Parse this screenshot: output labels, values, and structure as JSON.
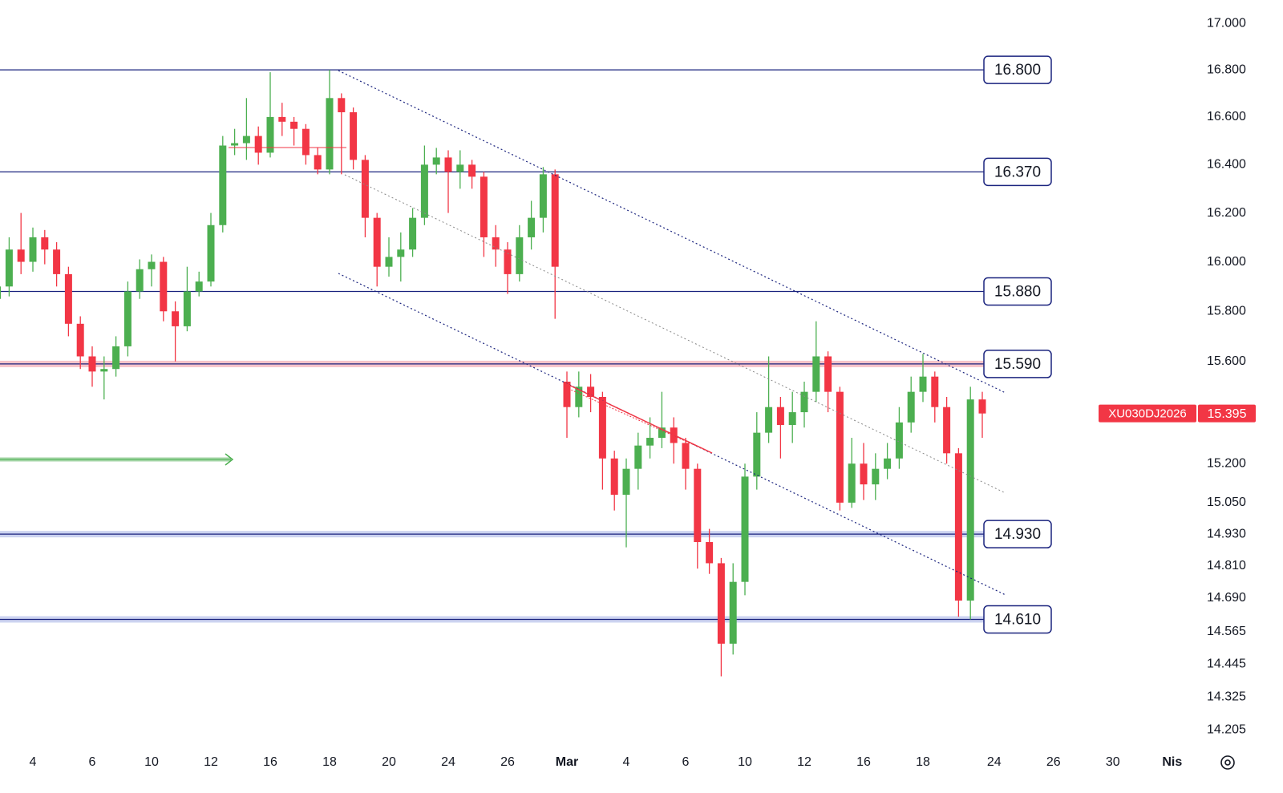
{
  "chart_data": {
    "type": "candlestick",
    "symbol": "XU030DJ2026",
    "last_price": {
      "value": 15395,
      "label": "15.395"
    },
    "up_color": "#4caf50",
    "down_color": "#f23645",
    "log_scale": true,
    "ylim": [
      14134,
      17101
    ],
    "yticks": [
      {
        "value": 17000,
        "label": "17.000"
      },
      {
        "value": 16800,
        "label": "16.800"
      },
      {
        "value": 16600,
        "label": "16.600"
      },
      {
        "value": 16400,
        "label": "16.400"
      },
      {
        "value": 16200,
        "label": "16.200"
      },
      {
        "value": 16000,
        "label": "16.000"
      },
      {
        "value": 15800,
        "label": "15.800"
      },
      {
        "value": 15600,
        "label": "15.600"
      },
      {
        "value": 15200,
        "label": "15.200"
      },
      {
        "value": 15050,
        "label": "15.050"
      },
      {
        "value": 14930,
        "label": "14.930"
      },
      {
        "value": 14810,
        "label": "14.810"
      },
      {
        "value": 14690,
        "label": "14.690"
      },
      {
        "value": 14565,
        "label": "14.565"
      },
      {
        "value": 14445,
        "label": "14.445"
      },
      {
        "value": 14325,
        "label": "14.325"
      },
      {
        "value": 14205,
        "label": "14.205"
      }
    ],
    "levels": [
      {
        "value": 16800,
        "label": "16.800",
        "band": "none"
      },
      {
        "value": 16370,
        "label": "16.370",
        "band": "none"
      },
      {
        "value": 15880,
        "label": "15.880",
        "band": "none"
      },
      {
        "value": 15590,
        "label": "15.590",
        "band": "#f7c3c9"
      },
      {
        "value": 14930,
        "label": "14.930",
        "band": "#ccd3f0"
      },
      {
        "value": 14610,
        "label": "14.610",
        "band": "#ccd3f0"
      }
    ],
    "categories": [
      null,
      null,
      null,
      null,
      null,
      "4",
      null,
      null,
      null,
      null,
      "6",
      null,
      null,
      null,
      null,
      "10",
      null,
      null,
      null,
      null,
      "12",
      null,
      null,
      null,
      null,
      "16",
      null,
      null,
      null,
      null,
      "18",
      null,
      null,
      null,
      null,
      "20",
      null,
      null,
      null,
      null,
      "24",
      null,
      null,
      null,
      null,
      "26",
      null,
      null,
      null,
      null,
      "Mar",
      null,
      null,
      null,
      null,
      "4",
      null,
      null,
      null,
      null,
      "6",
      null,
      null,
      null,
      null,
      "10",
      null,
      null,
      null,
      null,
      "12",
      null,
      null,
      null,
      null,
      "16",
      null,
      null,
      null,
      null,
      "18",
      null,
      null,
      null,
      null,
      null,
      "24",
      null,
      null,
      null,
      null,
      "26",
      null,
      null,
      null,
      null,
      "30",
      null,
      null,
      null,
      null,
      "Nis"
    ],
    "open": [
      null,
      null,
      15850,
      15900,
      16050,
      16000,
      16100,
      16050,
      15950,
      15750,
      15620,
      15560,
      15570,
      15660,
      15880,
      15970,
      16000,
      15800,
      15740,
      15880,
      15920,
      16150,
      16480,
      16490,
      16520,
      16450,
      16600,
      16580,
      16550,
      16440,
      16380,
      16680,
      16620,
      16420,
      16180,
      15980,
      16020,
      16050,
      16180,
      16400,
      16430,
      16370,
      16400,
      16350,
      16100,
      16050,
      15950,
      16100,
      16180,
      16360,
      15520,
      15420,
      15500,
      15460,
      15220,
      15080,
      15180,
      15270,
      15300,
      15340,
      15280,
      15180,
      14900,
      14820,
      14520,
      14750,
      15150,
      15320,
      15420,
      15350,
      15400,
      15480,
      15620,
      15480,
      15050,
      15200,
      15120,
      15180,
      15220,
      15360,
      15480,
      15540,
      15420,
      15240,
      14680,
      15450,
      null,
      null,
      null,
      null,
      null,
      null,
      null,
      null,
      null,
      null,
      null,
      null,
      null,
      null,
      null,
      null
    ],
    "close": [
      null,
      null,
      15900,
      16050,
      16000,
      16100,
      16050,
      15950,
      15750,
      15620,
      15560,
      15570,
      15660,
      15880,
      15970,
      16000,
      15800,
      15740,
      15880,
      15920,
      16150,
      16480,
      16490,
      16520,
      16450,
      16600,
      16580,
      16550,
      16440,
      16380,
      16680,
      16620,
      16420,
      16180,
      15980,
      16020,
      16050,
      16180,
      16400,
      16430,
      16370,
      16400,
      16350,
      16100,
      16050,
      15950,
      16100,
      16180,
      16360,
      15980,
      15420,
      15500,
      15460,
      15220,
      15080,
      15180,
      15270,
      15300,
      15340,
      15280,
      15180,
      14900,
      14820,
      14520,
      14750,
      15150,
      15320,
      15420,
      15350,
      15400,
      15480,
      15620,
      15480,
      15050,
      15200,
      15120,
      15180,
      15220,
      15360,
      15480,
      15540,
      15420,
      15240,
      14680,
      15450,
      15395,
      null,
      null,
      null,
      null,
      null,
      null,
      null,
      null,
      null,
      null,
      null,
      null,
      null,
      null,
      null,
      null
    ],
    "high": [
      null,
      null,
      15980,
      16100,
      16200,
      16140,
      16130,
      16080,
      15980,
      15780,
      15660,
      15620,
      15700,
      15920,
      16010,
      16030,
      16020,
      15840,
      15980,
      15960,
      16200,
      16520,
      16550,
      16680,
      16560,
      16790,
      16660,
      16600,
      16570,
      16470,
      16800,
      16700,
      16640,
      16440,
      16200,
      16100,
      16120,
      16220,
      16480,
      16470,
      16460,
      16460,
      16420,
      16370,
      16150,
      16080,
      16150,
      16250,
      16390,
      16380,
      15560,
      15560,
      15550,
      15480,
      15250,
      15220,
      15320,
      15380,
      15480,
      15380,
      15300,
      15200,
      14950,
      14840,
      14820,
      15200,
      15400,
      15620,
      15460,
      15480,
      15520,
      15760,
      15640,
      15500,
      15300,
      15280,
      15240,
      15280,
      15420,
      15540,
      15630,
      15560,
      15460,
      15260,
      15500,
      15480,
      null,
      null,
      null,
      null,
      null,
      null,
      null,
      null,
      null,
      null,
      null,
      null,
      null,
      null,
      null,
      null
    ],
    "low": [
      null,
      null,
      15800,
      15860,
      15950,
      15960,
      15990,
      15900,
      15700,
      15570,
      15500,
      15450,
      15540,
      15620,
      15850,
      15900,
      15760,
      15600,
      15720,
      15860,
      15900,
      16120,
      16440,
      16420,
      16400,
      16430,
      16520,
      16480,
      16400,
      16360,
      16360,
      16360,
      16380,
      16100,
      15900,
      15940,
      15920,
      16020,
      16150,
      16360,
      16200,
      16300,
      16300,
      16020,
      15980,
      15870,
      15920,
      16050,
      16120,
      15770,
      15300,
      15380,
      15400,
      15100,
      15020,
      14880,
      15100,
      15220,
      15260,
      15200,
      15100,
      14800,
      14780,
      14400,
      14480,
      14700,
      15100,
      15280,
      15220,
      15280,
      15340,
      15440,
      15400,
      15020,
      15030,
      15060,
      15060,
      15140,
      15180,
      15320,
      15440,
      15360,
      15200,
      14620,
      14610,
      15300,
      null,
      null,
      null,
      null,
      null,
      null,
      null,
      null,
      null,
      null,
      null,
      null,
      null,
      null,
      null,
      null
    ]
  }
}
